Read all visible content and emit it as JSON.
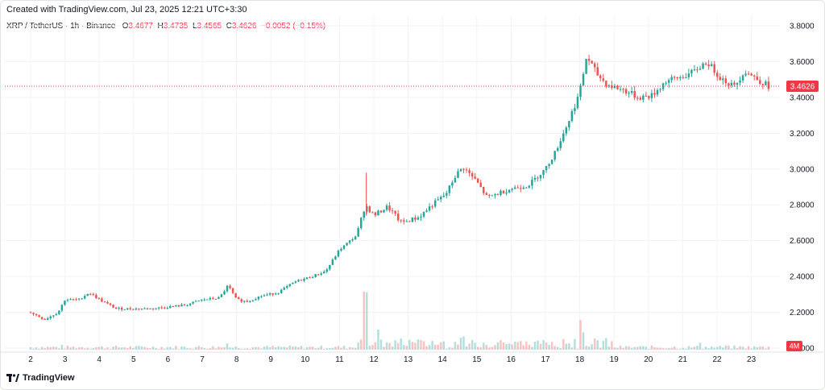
{
  "header": {
    "created_line": "Created with TradingView.com, Jul 23, 2025 12:21 UTC+3:30"
  },
  "legend": {
    "symbol": "XRP / TetherUS · 1h · Binance",
    "open_label": "O",
    "open_value": "3.4677",
    "high_label": "H",
    "high_value": "3.4735",
    "low_label": "L",
    "low_value": "3.4565",
    "close_label": "C",
    "close_value": "3.4626",
    "change": "−0.0052 (−0.15%)"
  },
  "footer": {
    "brand": "TradingView"
  },
  "colors": {
    "up": "#26a69a",
    "down": "#ef5350",
    "last_price": "#f23645",
    "grid": "#f0f3fa"
  },
  "chart_data": {
    "type": "candlestick",
    "price_axis": {
      "ylim": [
        2.1,
        3.9
      ],
      "ticks": [
        "3.8000",
        "3.6000",
        "3.4000",
        "3.2000",
        "3.0000",
        "2.8000",
        "2.6000",
        "2.4000",
        "2.2000",
        "2.0000"
      ]
    },
    "x_ticks": [
      "2",
      "3",
      "4",
      "5",
      "6",
      "7",
      "8",
      "9",
      "10",
      "11",
      "12",
      "13",
      "14",
      "15",
      "16",
      "17",
      "18",
      "19",
      "20",
      "21",
      "22",
      "23"
    ],
    "last_price_label": "3.4626",
    "volume_label": "4M",
    "close_path": [
      [
        2.0,
        2.2
      ],
      [
        2.4,
        2.16
      ],
      [
        2.8,
        2.2
      ],
      [
        3.0,
        2.27
      ],
      [
        3.4,
        2.27
      ],
      [
        3.7,
        2.31
      ],
      [
        4.1,
        2.26
      ],
      [
        4.5,
        2.22
      ],
      [
        5.0,
        2.22
      ],
      [
        5.5,
        2.22
      ],
      [
        6.0,
        2.23
      ],
      [
        6.5,
        2.24
      ],
      [
        7.0,
        2.27
      ],
      [
        7.5,
        2.28
      ],
      [
        7.75,
        2.35
      ],
      [
        8.0,
        2.27
      ],
      [
        8.3,
        2.26
      ],
      [
        8.7,
        2.29
      ],
      [
        9.2,
        2.31
      ],
      [
        9.7,
        2.37
      ],
      [
        10.2,
        2.4
      ],
      [
        10.6,
        2.43
      ],
      [
        11.0,
        2.55
      ],
      [
        11.5,
        2.63
      ],
      [
        11.75,
        2.8
      ],
      [
        12.0,
        2.74
      ],
      [
        12.4,
        2.79
      ],
      [
        12.8,
        2.7
      ],
      [
        13.3,
        2.73
      ],
      [
        13.7,
        2.8
      ],
      [
        14.1,
        2.86
      ],
      [
        14.4,
        2.97
      ],
      [
        14.6,
        3.01
      ],
      [
        15.0,
        2.93
      ],
      [
        15.3,
        2.84
      ],
      [
        15.7,
        2.87
      ],
      [
        16.0,
        2.89
      ],
      [
        16.5,
        2.91
      ],
      [
        17.0,
        3.0
      ],
      [
        17.3,
        3.1
      ],
      [
        17.7,
        3.28
      ],
      [
        18.0,
        3.43
      ],
      [
        18.2,
        3.63
      ],
      [
        18.5,
        3.53
      ],
      [
        18.8,
        3.47
      ],
      [
        19.3,
        3.44
      ],
      [
        19.7,
        3.4
      ],
      [
        20.1,
        3.41
      ],
      [
        20.5,
        3.49
      ],
      [
        20.9,
        3.51
      ],
      [
        21.3,
        3.54
      ],
      [
        21.7,
        3.6
      ],
      [
        22.1,
        3.51
      ],
      [
        22.5,
        3.46
      ],
      [
        22.8,
        3.55
      ],
      [
        23.1,
        3.51
      ],
      [
        23.5,
        3.4626
      ]
    ],
    "volume_spikes": [
      [
        2.9,
        0.35
      ],
      [
        7.7,
        0.45
      ],
      [
        11.7,
        2.0
      ],
      [
        11.75,
        4.0
      ],
      [
        12.1,
        0.9
      ],
      [
        13.2,
        0.4
      ],
      [
        14.6,
        0.6
      ],
      [
        17.5,
        0.6
      ],
      [
        18.0,
        1.5
      ],
      [
        18.1,
        1.1
      ],
      [
        21.5,
        0.5
      ],
      [
        22.3,
        0.3
      ]
    ]
  }
}
